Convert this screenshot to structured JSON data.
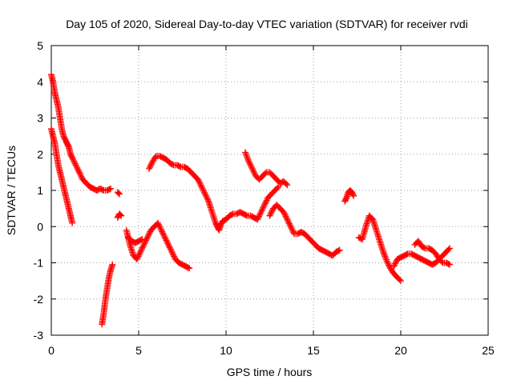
{
  "chart_data": {
    "type": "scatter",
    "title": "Day 105 of 2020, Sidereal Day-to-day VTEC variation (SDTVAR) for receiver rvdi",
    "xlabel": "GPS time / hours",
    "ylabel": "SDTVAR / TECUs",
    "xlim": [
      0,
      25
    ],
    "ylim": [
      -3,
      5
    ],
    "xticks": [
      "0",
      "5",
      "10",
      "15",
      "20",
      "25"
    ],
    "yticks": [
      "-3",
      "-2",
      "-1",
      "0",
      "1",
      "2",
      "3",
      "4",
      "5"
    ],
    "grid": true,
    "marker": "plus",
    "series": [
      {
        "name": "SDTVAR",
        "color": "#ff0000",
        "segments": [
          {
            "x": [
              0.0,
              0.1,
              0.2,
              0.3,
              0.4,
              0.5,
              0.6,
              0.7,
              0.8,
              0.9,
              1.0,
              1.1,
              1.2,
              1.4,
              1.6,
              1.8,
              2.0,
              2.2,
              2.4,
              2.6,
              2.8,
              3.0,
              3.2,
              3.4
            ],
            "y": [
              4.2,
              4.0,
              3.7,
              3.5,
              3.3,
              3.0,
              2.7,
              2.5,
              2.4,
              2.3,
              2.2,
              2.0,
              1.9,
              1.7,
              1.5,
              1.3,
              1.2,
              1.1,
              1.05,
              1.0,
              1.05,
              1.0,
              1.0,
              1.05
            ]
          },
          {
            "x": [
              3.8,
              3.9
            ],
            "y": [
              0.95,
              0.9
            ]
          },
          {
            "x": [
              0.0,
              0.1,
              0.2,
              0.3,
              0.4,
              0.5,
              0.6,
              0.7,
              0.8,
              0.9,
              1.0,
              1.1,
              1.2
            ],
            "y": [
              2.7,
              2.5,
              2.3,
              2.0,
              1.7,
              1.5,
              1.3,
              1.1,
              0.9,
              0.7,
              0.5,
              0.3,
              0.1
            ]
          },
          {
            "x": [
              2.9,
              3.0,
              3.1,
              3.2,
              3.3,
              3.4,
              3.5
            ],
            "y": [
              -2.7,
              -2.4,
              -2.0,
              -1.7,
              -1.4,
              -1.2,
              -1.05
            ]
          },
          {
            "x": [
              3.8,
              3.9,
              4.0
            ],
            "y": [
              0.25,
              0.35,
              0.3
            ]
          },
          {
            "x": [
              4.3,
              4.5,
              4.7,
              4.9,
              5.1,
              5.3,
              5.5,
              5.7,
              5.9,
              6.1,
              6.3,
              6.5,
              6.7,
              6.9,
              7.1,
              7.3,
              7.5,
              7.7,
              7.9
            ],
            "y": [
              -0.1,
              -0.5,
              -0.8,
              -0.9,
              -0.7,
              -0.5,
              -0.3,
              -0.1,
              0.0,
              0.1,
              -0.1,
              -0.3,
              -0.5,
              -0.7,
              -0.9,
              -1.0,
              -1.05,
              -1.1,
              -1.15
            ]
          },
          {
            "x": [
              4.4,
              4.6,
              4.8,
              5.0,
              5.2
            ],
            "y": [
              -0.3,
              -0.4,
              -0.45,
              -0.4,
              -0.35
            ]
          },
          {
            "x": [
              5.6,
              5.8,
              6.0,
              6.2,
              6.4,
              6.6,
              6.8,
              7.0,
              7.2,
              7.4,
              7.6,
              7.8,
              8.0,
              8.2,
              8.4,
              8.6,
              8.8,
              9.0,
              9.2,
              9.4,
              9.5,
              9.6,
              9.7,
              9.8,
              10.0,
              10.2,
              10.4,
              10.6,
              10.8,
              11.0,
              11.2,
              11.4,
              11.6,
              11.8,
              12.0,
              12.2,
              12.4,
              12.6,
              12.8,
              13.0
            ],
            "y": [
              1.6,
              1.8,
              1.95,
              1.95,
              1.9,
              1.85,
              1.75,
              1.7,
              1.7,
              1.65,
              1.65,
              1.6,
              1.5,
              1.4,
              1.3,
              1.1,
              0.9,
              0.7,
              0.4,
              0.1,
              0.0,
              -0.1,
              0.05,
              0.15,
              0.2,
              0.3,
              0.35,
              0.35,
              0.4,
              0.35,
              0.3,
              0.3,
              0.25,
              0.2,
              0.4,
              0.6,
              0.8,
              0.9,
              1.0,
              1.1
            ]
          },
          {
            "x": [
              11.1,
              11.3,
              11.5,
              11.7,
              11.9,
              12.1,
              12.3,
              12.5,
              12.7,
              12.9,
              13.1,
              13.3,
              13.5
            ],
            "y": [
              2.05,
              1.8,
              1.6,
              1.4,
              1.3,
              1.4,
              1.5,
              1.5,
              1.4,
              1.3,
              1.2,
              1.25,
              1.15
            ]
          },
          {
            "x": [
              12.5,
              12.7,
              12.9,
              13.1,
              13.3,
              13.5,
              13.7,
              13.9,
              14.1,
              14.3,
              14.5,
              14.7,
              14.9,
              15.1,
              15.3,
              15.5,
              15.7,
              15.9,
              16.1,
              16.3,
              16.5
            ],
            "y": [
              0.3,
              0.5,
              0.6,
              0.5,
              0.4,
              0.2,
              0.0,
              -0.2,
              -0.2,
              -0.15,
              -0.2,
              -0.3,
              -0.4,
              -0.5,
              -0.6,
              -0.65,
              -0.7,
              -0.75,
              -0.8,
              -0.7,
              -0.65
            ]
          },
          {
            "x": [
              16.8,
              16.9,
              17.0,
              17.1,
              17.2,
              17.3
            ],
            "y": [
              0.7,
              0.8,
              0.95,
              1.0,
              0.95,
              0.85
            ]
          },
          {
            "x": [
              17.6,
              17.8,
              18.0,
              18.2,
              18.4,
              18.6,
              18.8,
              19.0,
              19.2,
              19.4,
              19.6,
              19.8,
              20.0
            ],
            "y": [
              -0.3,
              -0.35,
              0.0,
              0.3,
              0.2,
              -0.1,
              -0.4,
              -0.7,
              -0.95,
              -1.15,
              -1.3,
              -1.4,
              -1.5
            ]
          },
          {
            "x": [
              19.6,
              19.8,
              20.0,
              20.2,
              20.4,
              20.6,
              20.8,
              21.0,
              21.2,
              21.4,
              21.6,
              21.8,
              22.0,
              22.2,
              22.4,
              22.6,
              22.8
            ],
            "y": [
              -1.1,
              -0.9,
              -0.85,
              -0.8,
              -0.75,
              -0.75,
              -0.8,
              -0.85,
              -0.9,
              -0.95,
              -1.0,
              -1.05,
              -1.0,
              -0.9,
              -0.8,
              -0.7,
              -0.6
            ]
          },
          {
            "x": [
              20.8,
              21.0,
              21.2,
              21.4,
              21.6,
              21.8,
              22.0,
              22.2,
              22.4,
              22.6,
              22.8
            ],
            "y": [
              -0.5,
              -0.4,
              -0.55,
              -0.6,
              -0.6,
              -0.65,
              -0.75,
              -0.9,
              -1.0,
              -1.0,
              -1.05
            ]
          }
        ]
      }
    ]
  }
}
